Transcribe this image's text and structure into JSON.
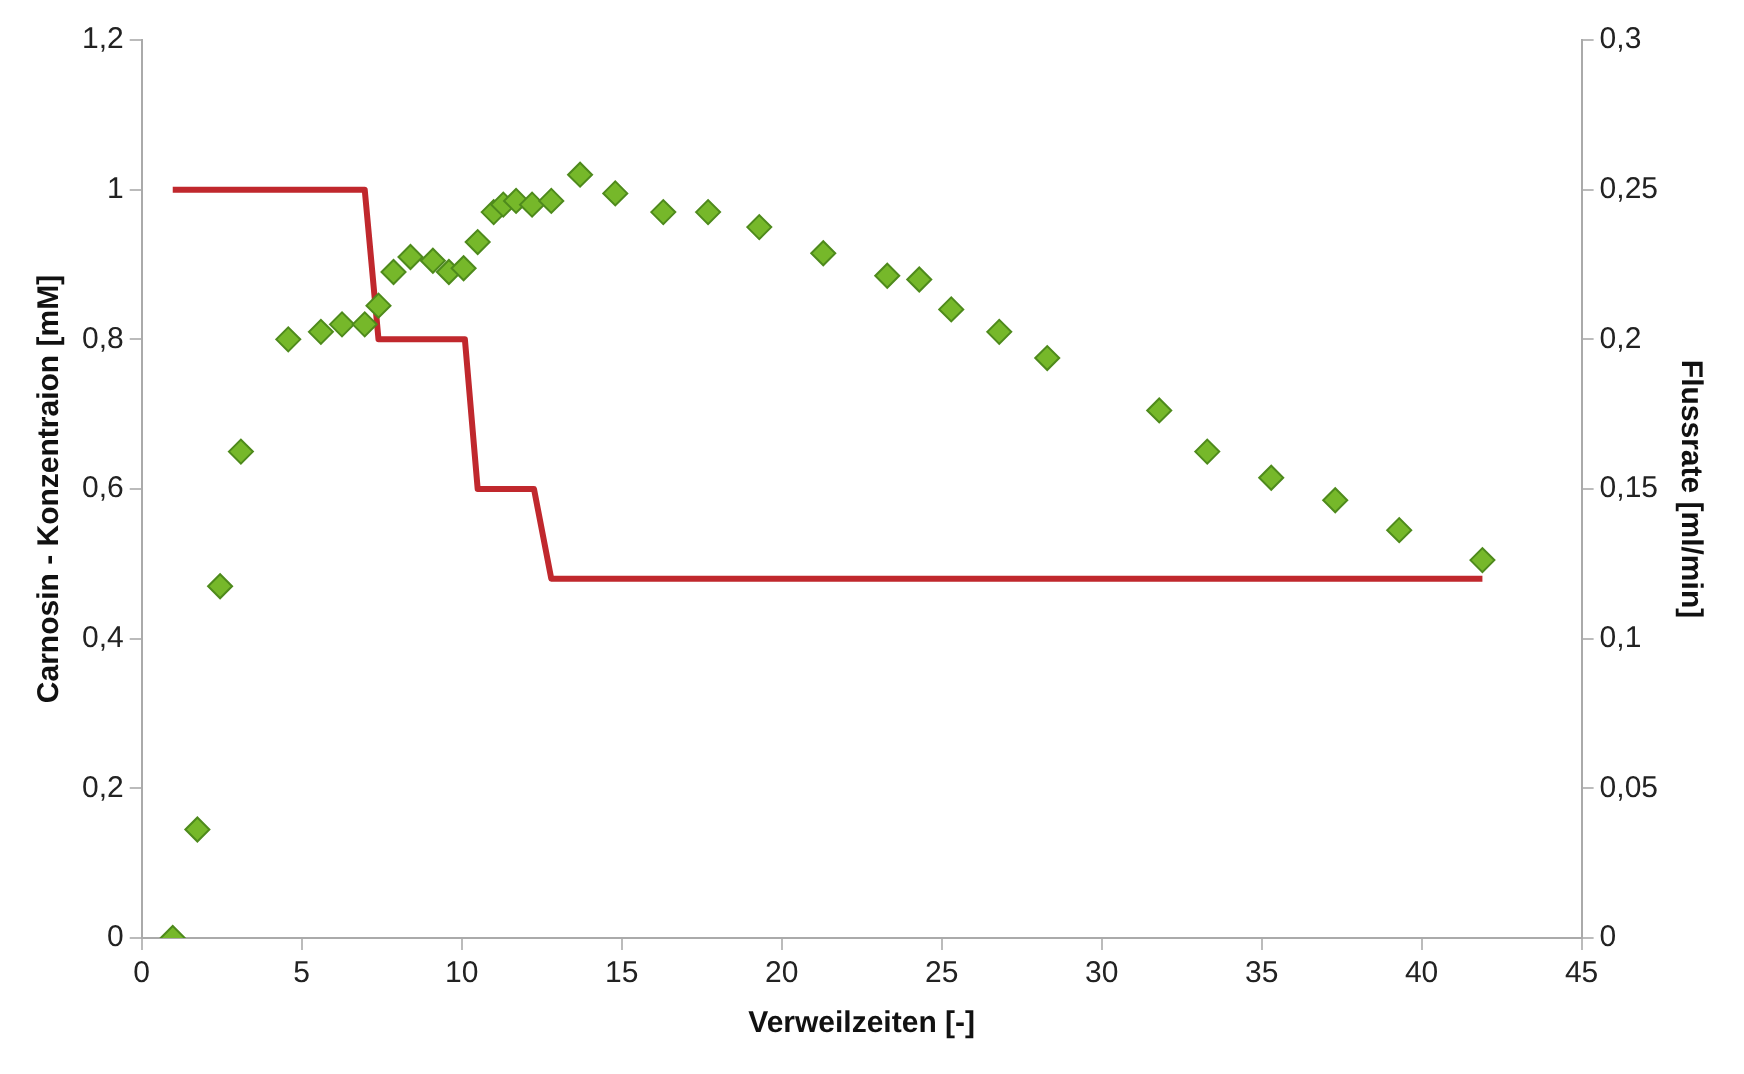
{
  "chart_data": {
    "type": "scatter",
    "xlabel": "Verweilzeiten [-]",
    "ylabel": "Carnosin - Konzentraion [mM]",
    "y2label": "Flussrate [ml/min]",
    "xlim": [
      0,
      45
    ],
    "xticks": [
      0,
      5,
      10,
      15,
      20,
      25,
      30,
      35,
      40,
      45
    ],
    "ylim": [
      0,
      1.2
    ],
    "yticks": [
      0,
      {
        "value": 0.2,
        "label": "0,2"
      },
      {
        "value": 0.4,
        "label": "0,4"
      },
      {
        "value": 0.6,
        "label": "0,6"
      },
      {
        "value": 0.8,
        "label": "0,8"
      },
      1,
      {
        "value": 1.2,
        "label": "1,2"
      }
    ],
    "y2lim": [
      0,
      0.3
    ],
    "y2ticks": [
      0,
      {
        "value": 0.05,
        "label": "0,05"
      },
      {
        "value": 0.1,
        "label": "0,1"
      },
      {
        "value": 0.15,
        "label": "0,15"
      },
      {
        "value": 0.2,
        "label": "0,2"
      },
      {
        "value": 0.25,
        "label": "0,25"
      },
      {
        "value": 0.3,
        "label": "0,3"
      }
    ],
    "grid": false,
    "legend": false,
    "series": [
      {
        "type": "scatter",
        "color": "#76b82a",
        "marker": "diamond",
        "x": [
          0.97,
          1.74,
          2.45,
          3.1,
          4.58,
          5.6,
          6.26,
          6.97,
          7.4,
          7.87,
          8.4,
          9.1,
          9.6,
          10.06,
          10.5,
          11.0,
          11.3,
          11.7,
          12.2,
          12.8,
          13.7,
          14.8,
          16.3,
          17.7,
          19.3,
          21.3,
          23.3,
          24.3,
          25.3,
          26.8,
          28.3,
          31.8,
          33.3,
          35.3,
          37.3,
          39.3,
          41.9
        ],
        "values": [
          0,
          0.145,
          0.47,
          0.65,
          0.8,
          0.81,
          0.82,
          0.82,
          0.845,
          0.89,
          0.91,
          0.905,
          0.89,
          0.895,
          0.93,
          0.97,
          0.98,
          0.985,
          0.98,
          0.985,
          1.02,
          0.995,
          0.97,
          0.97,
          0.95,
          0.915,
          0.885,
          0.88,
          0.84,
          0.81,
          0.775,
          0.705,
          0.65,
          0.615,
          0.585,
          0.545,
          0.505
        ]
      },
      {
        "type": "line",
        "axis": "y2",
        "color": "#c0282d",
        "marker": "none",
        "line_style": "solid",
        "x": [
          0.97,
          6.97,
          7.4,
          10.1,
          10.5,
          12.26,
          12.8,
          41.9
        ],
        "values": [
          0.25,
          0.25,
          0.2,
          0.2,
          0.15,
          0.15,
          0.12,
          0.12
        ]
      }
    ]
  }
}
